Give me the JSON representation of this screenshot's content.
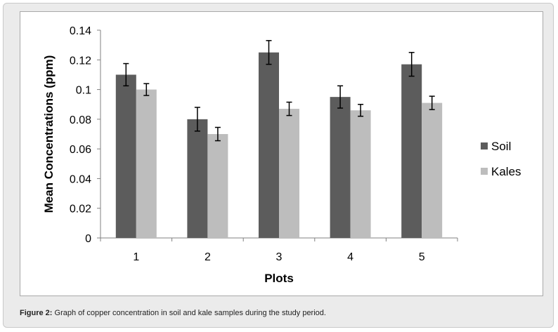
{
  "chart_data": {
    "type": "bar",
    "title": "",
    "xlabel": "Plots",
    "ylabel": "Mean Concentrations (ppm)",
    "categories": [
      "1",
      "2",
      "3",
      "4",
      "5"
    ],
    "ylim": [
      0,
      0.14
    ],
    "yticks": [
      0,
      0.02,
      0.04,
      0.06,
      0.08,
      0.1,
      0.12,
      0.14
    ],
    "ytick_labels": [
      "0",
      "0.02",
      "0.04",
      "0.06",
      "0.08",
      "0.1",
      "0.12",
      "0.14"
    ],
    "legend_position": "right",
    "grid": false,
    "series": [
      {
        "name": "Soil",
        "color": "#5c5c5c",
        "values": [
          0.11,
          0.08,
          0.125,
          0.095,
          0.117
        ],
        "errors": [
          0.0075,
          0.008,
          0.008,
          0.0075,
          0.008
        ]
      },
      {
        "name": "Kales",
        "color": "#bdbdbd",
        "values": [
          0.1,
          0.07,
          0.087,
          0.086,
          0.091
        ],
        "errors": [
          0.004,
          0.0045,
          0.0045,
          0.004,
          0.0045
        ]
      }
    ]
  },
  "caption": {
    "label": "Figure 2:",
    "text": " Graph of copper concentration in soil and kale samples during the study period."
  }
}
